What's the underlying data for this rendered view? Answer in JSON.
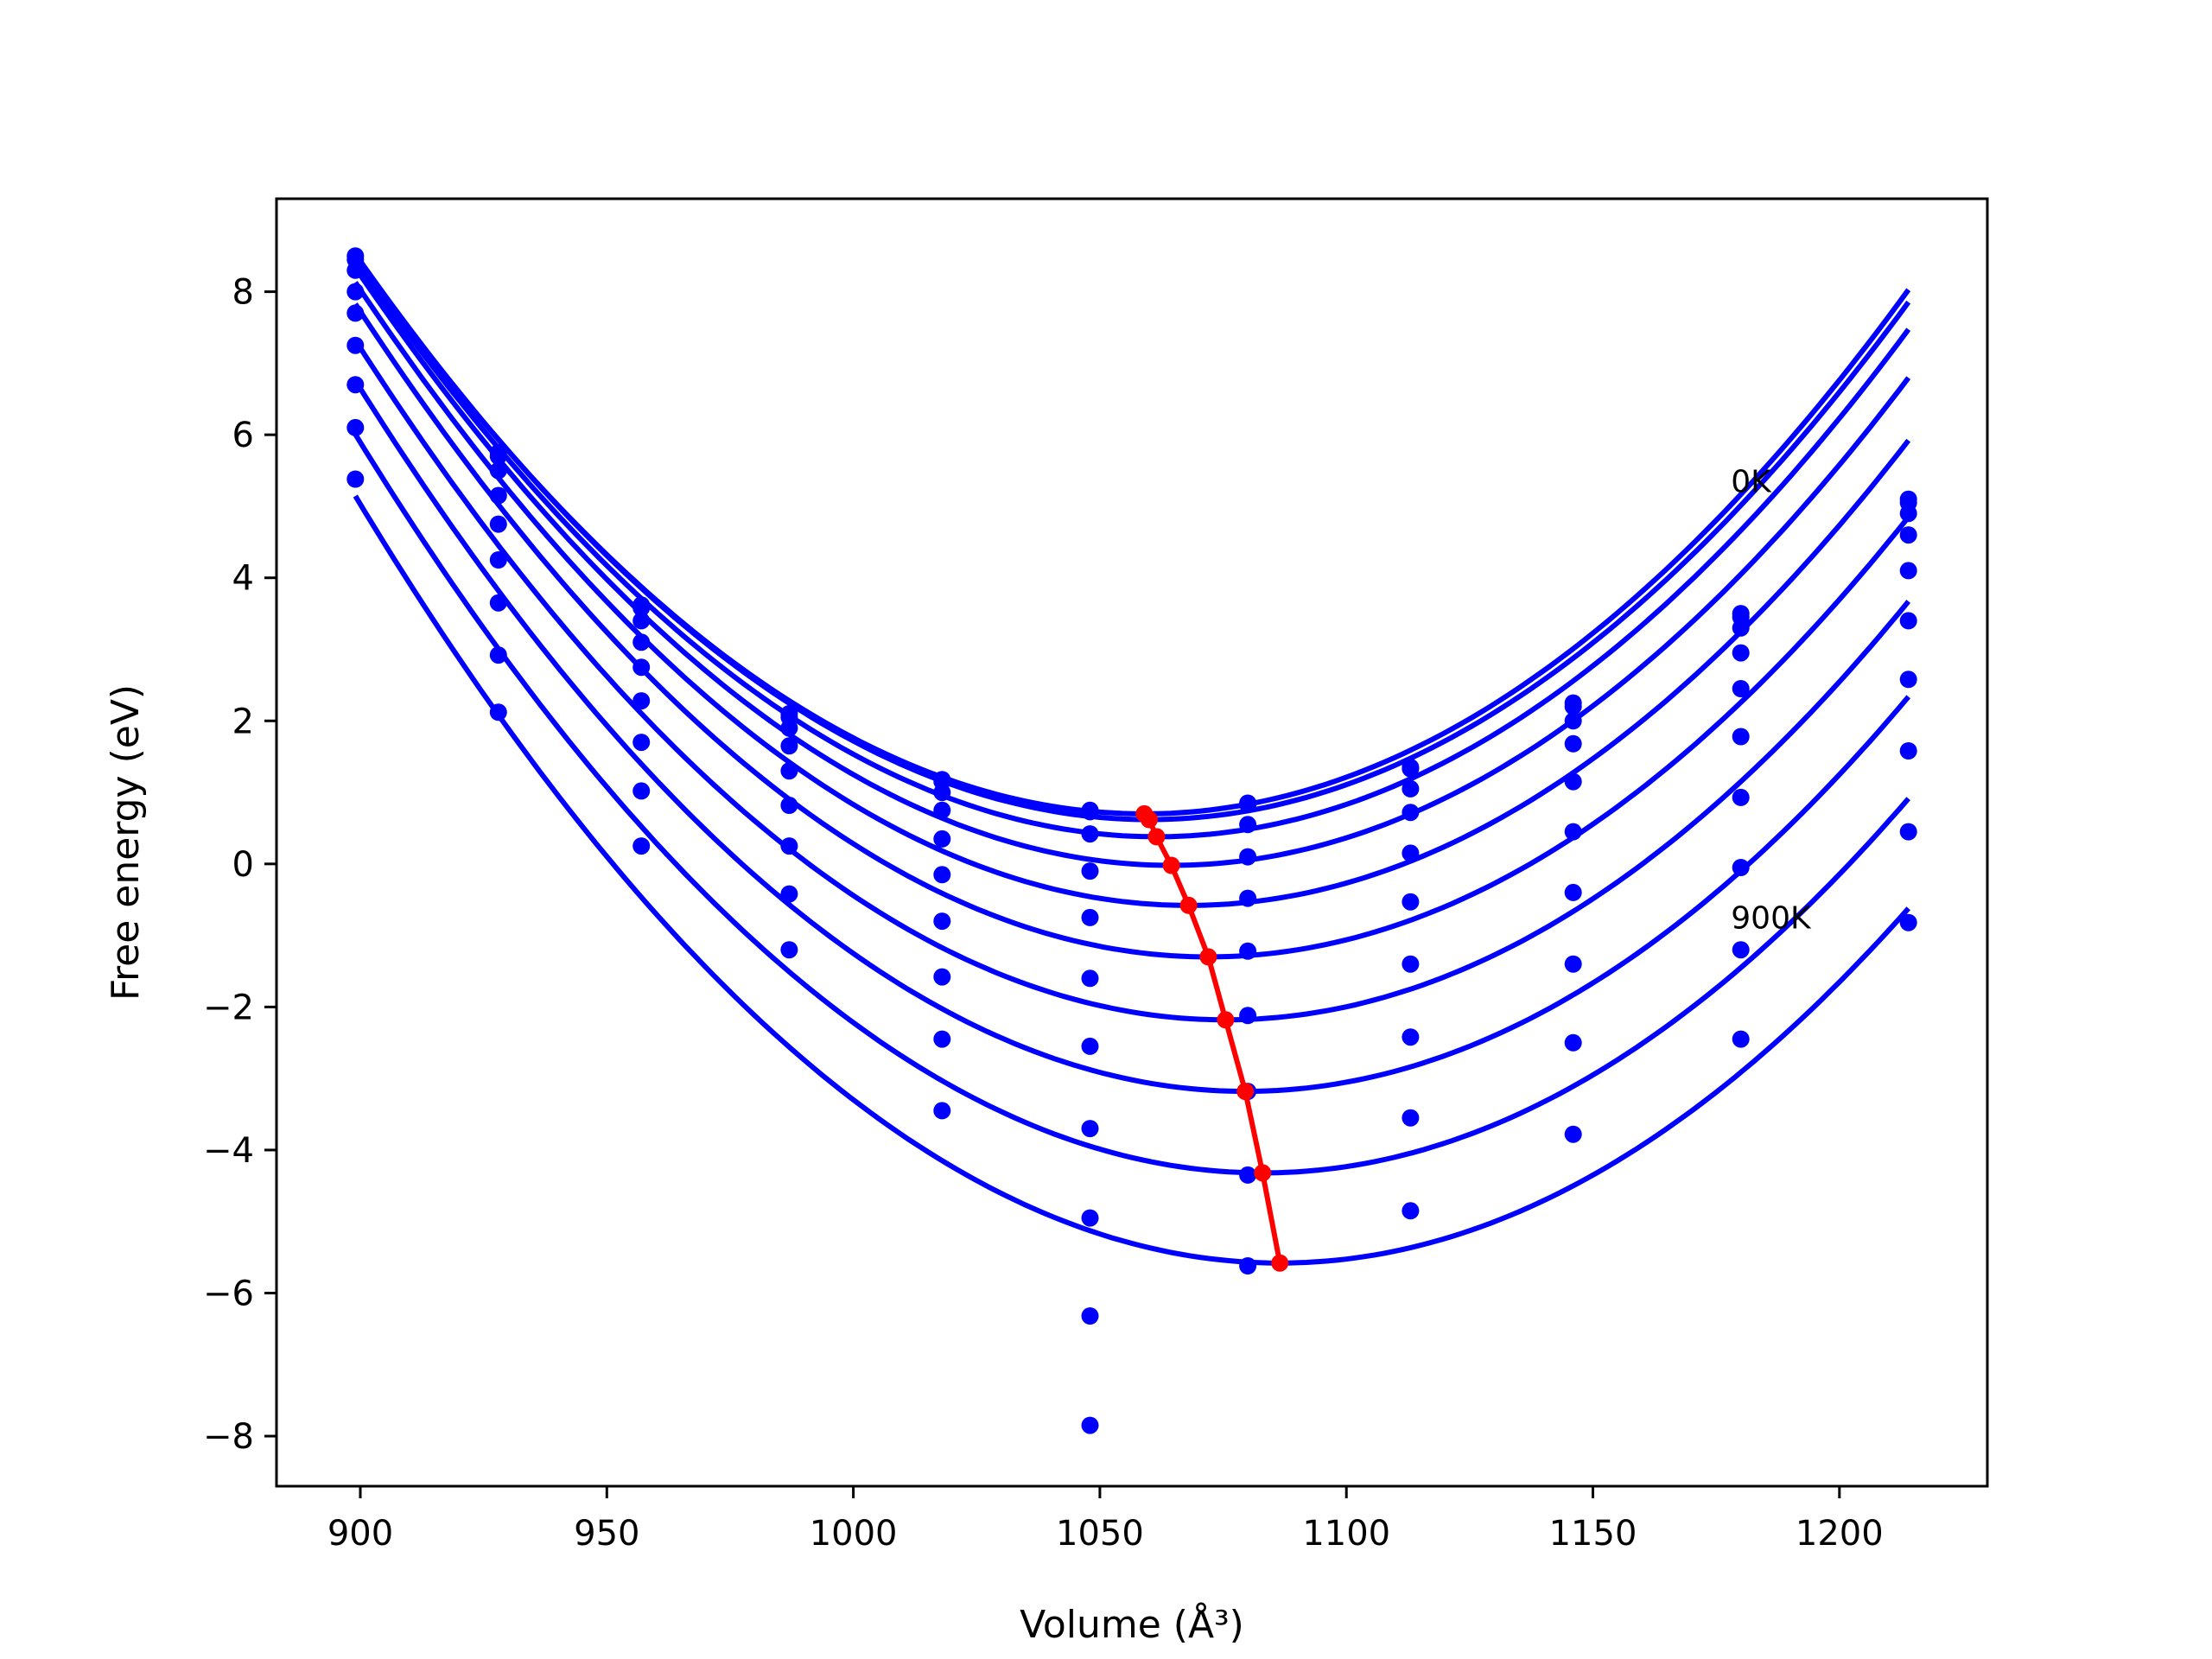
{
  "chart_data": {
    "type": "scatter",
    "xlabel": "Volume (Å³)",
    "ylabel": "Free energy (eV)",
    "xlim": [
      883,
      1230
    ],
    "ylim": [
      -8.7,
      9.3
    ],
    "x_ticks": [
      900,
      950,
      1000,
      1050,
      1100,
      1150,
      1200
    ],
    "y_ticks": [
      8,
      6,
      4,
      2,
      0,
      -2,
      -4,
      -6,
      -8
    ],
    "grid": false,
    "colors": {
      "fits": "#0000ff",
      "points": "#0000ff",
      "minimum_path": "#ff0000"
    },
    "annotations": [
      {
        "text": "0K",
        "x": 1178,
        "y": 5.2
      },
      {
        "text": "900K",
        "x": 1178,
        "y": -0.9
      }
    ],
    "volumes": [
      899,
      928,
      957,
      987,
      1018,
      1048,
      1080,
      1113,
      1146,
      1180,
      1214
    ],
    "points": [
      [
        8.5,
        5.75,
        3.62,
        2.1,
        1.18,
        0.75,
        0.85,
        1.35,
        2.25,
        3.5,
        5.1
      ],
      [
        8.45,
        5.7,
        3.58,
        2.05,
        1.15,
        0.73,
        0.83,
        1.33,
        2.2,
        3.45,
        5.05
      ],
      [
        8.3,
        5.5,
        3.4,
        1.9,
        1.0,
        0.42,
        0.55,
        1.05,
        2.0,
        3.3,
        4.9
      ],
      [
        8.0,
        5.15,
        3.1,
        1.65,
        0.75,
        -0.1,
        0.1,
        0.72,
        1.68,
        2.95,
        4.6
      ],
      [
        7.7,
        4.75,
        2.75,
        1.3,
        0.35,
        -0.75,
        -0.48,
        0.15,
        1.15,
        2.45,
        4.1
      ],
      [
        7.25,
        4.25,
        2.28,
        0.82,
        -0.15,
        -1.6,
        -1.22,
        -0.53,
        0.45,
        1.78,
        3.4
      ],
      [
        6.7,
        3.65,
        1.7,
        0.25,
        -0.8,
        -2.55,
        -2.12,
        -1.4,
        -0.4,
        0.93,
        2.58
      ],
      [
        6.1,
        2.92,
        1.02,
        -0.42,
        -1.58,
        -3.7,
        -3.18,
        -2.42,
        -1.4,
        -0.05,
        1.58
      ],
      [
        5.38,
        2.12,
        0.25,
        -1.2,
        -2.45,
        -4.95,
        -4.35,
        -3.55,
        -2.5,
        -1.2,
        0.45
      ],
      [
        null,
        null,
        null,
        null,
        -3.45,
        -6.32,
        -5.62,
        -4.85,
        -3.78,
        -2.45,
        -0.82
      ],
      [
        null,
        null,
        null,
        null,
        null,
        -7.85,
        null,
        null,
        null,
        null,
        null
      ]
    ],
    "fits": [
      {
        "v0": 1059,
        "e0": 0.7,
        "a": 0.000305
      },
      {
        "v0": 1060,
        "e0": 0.62,
        "a": 0.000305
      },
      {
        "v0": 1061.5,
        "e0": 0.38,
        "a": 0.000305
      },
      {
        "v0": 1064.5,
        "e0": -0.02,
        "a": 0.000305
      },
      {
        "v0": 1068,
        "e0": -0.58,
        "a": 0.000305
      },
      {
        "v0": 1072,
        "e0": -1.3,
        "a": 0.000305
      },
      {
        "v0": 1075.5,
        "e0": -2.18,
        "a": 0.000305
      },
      {
        "v0": 1079.5,
        "e0": -3.18,
        "a": 0.000305
      },
      {
        "v0": 1083,
        "e0": -4.32,
        "a": 0.000305
      },
      {
        "v0": 1086.5,
        "e0": -5.58,
        "a": 0.000305
      }
    ],
    "fit_range": [
      899,
      1214
    ],
    "minimum_path": {
      "x": [
        1059,
        1060,
        1061.5,
        1064.5,
        1068,
        1072,
        1075.5,
        1079.5,
        1083,
        1086.5
      ],
      "y": [
        0.7,
        0.62,
        0.38,
        -0.02,
        -0.58,
        -1.3,
        -2.18,
        -3.18,
        -4.32,
        -5.58
      ]
    }
  }
}
